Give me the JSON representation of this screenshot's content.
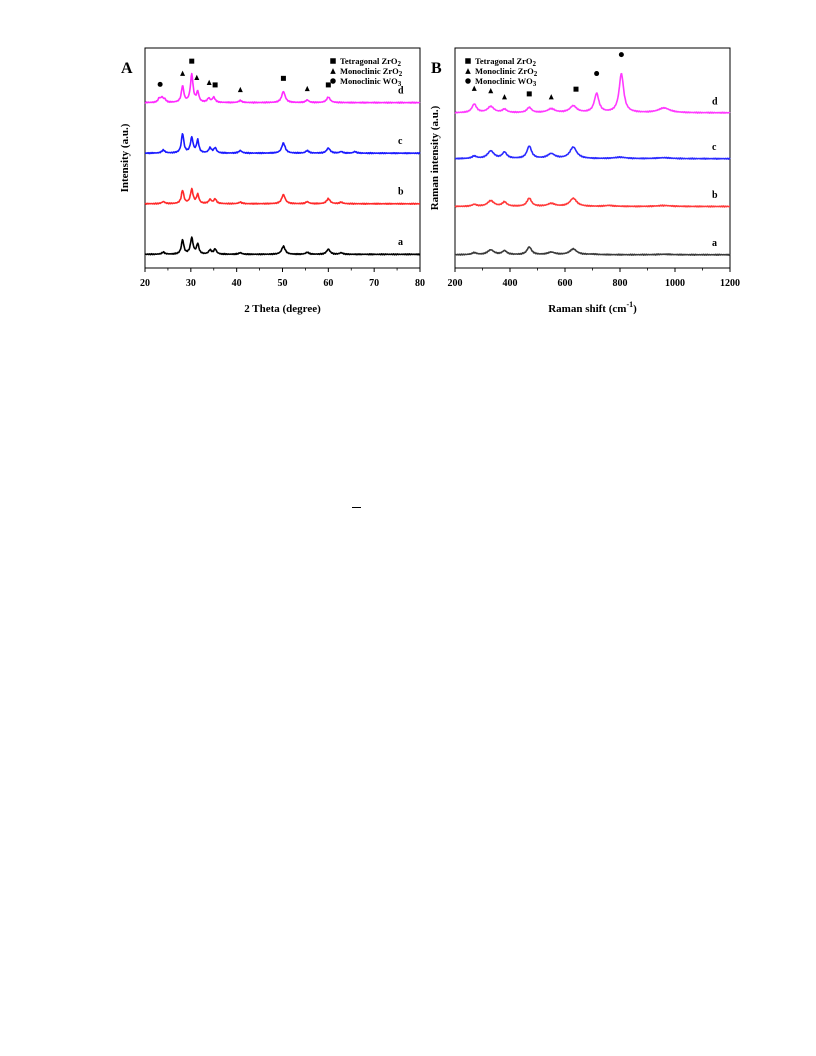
{
  "page": {
    "background": "#ffffff"
  },
  "chart_data": [
    {
      "panel": "A",
      "type": "line",
      "xlabel": "2 Theta (degree)",
      "ylabel": "Intensity (a.u.)",
      "xlim": [
        20,
        80
      ],
      "xticks": [
        20,
        30,
        40,
        50,
        60,
        70,
        80
      ],
      "y_ticks_shown": false,
      "legend": {
        "placement": "top-right",
        "entries": [
          {
            "marker": "square",
            "label": "Tetragonal ZrO2"
          },
          {
            "marker": "triangle",
            "label": "Monoclinic ZrO2"
          },
          {
            "marker": "circle",
            "label": "Monoclinic WO3"
          }
        ]
      },
      "series": [
        {
          "name": "a",
          "color": "#000000",
          "offset": 0.0,
          "base": 0.02,
          "peaks": [
            [
              24.0,
              0.04,
              0.4
            ],
            [
              28.2,
              0.28,
              0.32
            ],
            [
              30.2,
              0.32,
              0.35
            ],
            [
              31.5,
              0.2,
              0.3
            ],
            [
              34.2,
              0.08,
              0.35
            ],
            [
              35.3,
              0.1,
              0.35
            ],
            [
              40.8,
              0.03,
              0.4
            ],
            [
              50.2,
              0.16,
              0.45
            ],
            [
              55.4,
              0.04,
              0.4
            ],
            [
              60.0,
              0.1,
              0.45
            ],
            [
              62.8,
              0.03,
              0.4
            ]
          ]
        },
        {
          "name": "b",
          "color": "#ff2a2a",
          "offset": 1.0,
          "base": 0.02,
          "peaks": [
            [
              24.0,
              0.04,
              0.4
            ],
            [
              28.2,
              0.26,
              0.32
            ],
            [
              30.2,
              0.28,
              0.35
            ],
            [
              31.5,
              0.18,
              0.3
            ],
            [
              34.2,
              0.08,
              0.35
            ],
            [
              35.3,
              0.09,
              0.35
            ],
            [
              40.8,
              0.03,
              0.4
            ],
            [
              50.2,
              0.18,
              0.45
            ],
            [
              55.4,
              0.04,
              0.4
            ],
            [
              60.0,
              0.1,
              0.45
            ],
            [
              62.8,
              0.03,
              0.4
            ]
          ]
        },
        {
          "name": "c",
          "color": "#1a1aff",
          "offset": 2.0,
          "base": 0.02,
          "peaks": [
            [
              24.0,
              0.06,
              0.4
            ],
            [
              28.2,
              0.38,
              0.32
            ],
            [
              30.2,
              0.3,
              0.35
            ],
            [
              31.5,
              0.25,
              0.3
            ],
            [
              34.2,
              0.1,
              0.35
            ],
            [
              35.3,
              0.1,
              0.35
            ],
            [
              40.8,
              0.05,
              0.4
            ],
            [
              50.2,
              0.2,
              0.45
            ],
            [
              55.4,
              0.05,
              0.4
            ],
            [
              60.0,
              0.1,
              0.45
            ],
            [
              62.8,
              0.03,
              0.4
            ],
            [
              65.8,
              0.03,
              0.4
            ]
          ]
        },
        {
          "name": "d",
          "color": "#ff2aff",
          "offset": 3.0,
          "base": 0.02,
          "peaks": [
            [
              23.1,
              0.08,
              0.3
            ],
            [
              23.7,
              0.09,
              0.3
            ],
            [
              24.3,
              0.06,
              0.3
            ],
            [
              28.2,
              0.32,
              0.32
            ],
            [
              30.2,
              0.55,
              0.35
            ],
            [
              31.5,
              0.2,
              0.3
            ],
            [
              33.9,
              0.08,
              0.35
            ],
            [
              35.0,
              0.1,
              0.35
            ],
            [
              40.8,
              0.04,
              0.4
            ],
            [
              50.2,
              0.22,
              0.45
            ],
            [
              55.4,
              0.05,
              0.4
            ],
            [
              60.0,
              0.11,
              0.45
            ]
          ]
        }
      ],
      "series_labels": [
        "a",
        "b",
        "c",
        "d"
      ],
      "annotations": [
        {
          "marker": "circle",
          "x": 23.3,
          "y": 3.38
        },
        {
          "marker": "triangle",
          "x": 28.2,
          "y": 3.6
        },
        {
          "marker": "square",
          "x": 30.2,
          "y": 3.84
        },
        {
          "marker": "triangle",
          "x": 31.3,
          "y": 3.52
        },
        {
          "marker": "triangle",
          "x": 34.0,
          "y": 3.42
        },
        {
          "marker": "square",
          "x": 35.3,
          "y": 3.37
        },
        {
          "marker": "triangle",
          "x": 40.8,
          "y": 3.28
        },
        {
          "marker": "square",
          "x": 50.2,
          "y": 3.5
        },
        {
          "marker": "triangle",
          "x": 55.4,
          "y": 3.3
        },
        {
          "marker": "square",
          "x": 60.0,
          "y": 3.37
        }
      ]
    },
    {
      "panel": "B",
      "type": "line",
      "xlabel": "Raman shift (cm-1)",
      "ylabel": "Raman intensity (a.u.)",
      "xlim": [
        200,
        1200
      ],
      "xticks": [
        200,
        400,
        600,
        800,
        1000,
        1200
      ],
      "y_ticks_shown": false,
      "legend": {
        "placement": "top-left",
        "entries": [
          {
            "marker": "square",
            "label": "Tetragonal ZrO2"
          },
          {
            "marker": "triangle",
            "label": "Monoclinic ZrO2"
          },
          {
            "marker": "circle",
            "label": "Monoclinic WO3"
          }
        ]
      },
      "series": [
        {
          "name": "a",
          "color": "#3a3a3a",
          "offset": 0.0,
          "base": 0.03,
          "peaks": [
            [
              270,
              0.04,
              10
            ],
            [
              330,
              0.1,
              14
            ],
            [
              380,
              0.08,
              10
            ],
            [
              470,
              0.16,
              10
            ],
            [
              550,
              0.05,
              16
            ],
            [
              630,
              0.12,
              15
            ],
            [
              700,
              0.01,
              20
            ],
            [
              960,
              0.01,
              30
            ]
          ]
        },
        {
          "name": "b",
          "color": "#ff3a3a",
          "offset": 1.0,
          "base": 0.05,
          "peaks": [
            [
              270,
              0.04,
              10
            ],
            [
              330,
              0.12,
              14
            ],
            [
              380,
              0.09,
              10
            ],
            [
              470,
              0.17,
              10
            ],
            [
              550,
              0.06,
              16
            ],
            [
              630,
              0.17,
              15
            ],
            [
              760,
              0.02,
              20
            ],
            [
              960,
              0.02,
              30
            ]
          ]
        },
        {
          "name": "c",
          "color": "#2a2aff",
          "offset": 2.0,
          "base": 0.06,
          "peaks": [
            [
              270,
              0.05,
              10
            ],
            [
              330,
              0.16,
              14
            ],
            [
              380,
              0.13,
              10
            ],
            [
              470,
              0.26,
              10
            ],
            [
              550,
              0.1,
              16
            ],
            [
              630,
              0.24,
              15
            ],
            [
              800,
              0.03,
              25
            ],
            [
              960,
              0.02,
              30
            ]
          ]
        },
        {
          "name": "d",
          "color": "#ff3aff",
          "offset": 3.0,
          "base": 0.03,
          "peaks": [
            [
              270,
              0.18,
              10
            ],
            [
              330,
              0.13,
              14
            ],
            [
              380,
              0.07,
              10
            ],
            [
              470,
              0.11,
              10
            ],
            [
              550,
              0.08,
              16
            ],
            [
              630,
              0.14,
              15
            ],
            [
              715,
              0.4,
              10
            ],
            [
              805,
              0.82,
              10
            ],
            [
              960,
              0.1,
              25
            ]
          ]
        }
      ],
      "series_labels": [
        "a",
        "b",
        "c",
        "d"
      ],
      "annotations": [
        {
          "marker": "triangle",
          "x": 270,
          "y": 3.55
        },
        {
          "marker": "triangle",
          "x": 330,
          "y": 3.5
        },
        {
          "marker": "triangle",
          "x": 380,
          "y": 3.37
        },
        {
          "marker": "square",
          "x": 470,
          "y": 3.43
        },
        {
          "marker": "triangle",
          "x": 550,
          "y": 3.37
        },
        {
          "marker": "square",
          "x": 640,
          "y": 3.53
        },
        {
          "marker": "circle",
          "x": 715,
          "y": 3.86
        },
        {
          "marker": "circle",
          "x": 805,
          "y": 4.26
        }
      ]
    }
  ]
}
